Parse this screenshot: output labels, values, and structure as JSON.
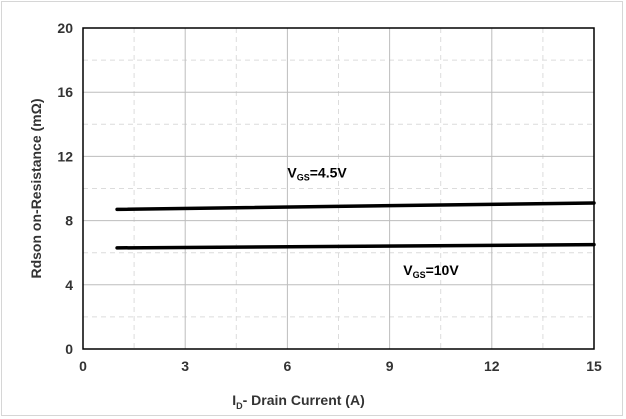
{
  "chart_data": {
    "type": "line",
    "xlabel": {
      "main": "I",
      "sub": "D",
      "rest": "- Drain Current (A)"
    },
    "ylabel": "Rdson on-Resistance (mΩ)",
    "xlim": [
      0,
      15
    ],
    "ylim": [
      0,
      20
    ],
    "x_ticks": [
      0,
      3,
      6,
      9,
      12,
      15
    ],
    "y_ticks": [
      0,
      4,
      8,
      12,
      16,
      20
    ],
    "grid": true,
    "colors": {
      "line": "#000000",
      "grid": "#bdbdbd",
      "minor_grid": "#dcdcdc",
      "text": "#333333"
    },
    "series": [
      {
        "label_main": "V",
        "label_sub": "GS",
        "label_rest": "=4.5V",
        "label_at": [
          6.0,
          10.7
        ],
        "x": [
          1,
          15
        ],
        "y": [
          8.7,
          9.1
        ]
      },
      {
        "label_main": "V",
        "label_sub": "GS",
        "label_rest": "=10V",
        "label_at": [
          9.4,
          4.6
        ],
        "x": [
          1,
          15
        ],
        "y": [
          6.3,
          6.5
        ]
      }
    ]
  }
}
